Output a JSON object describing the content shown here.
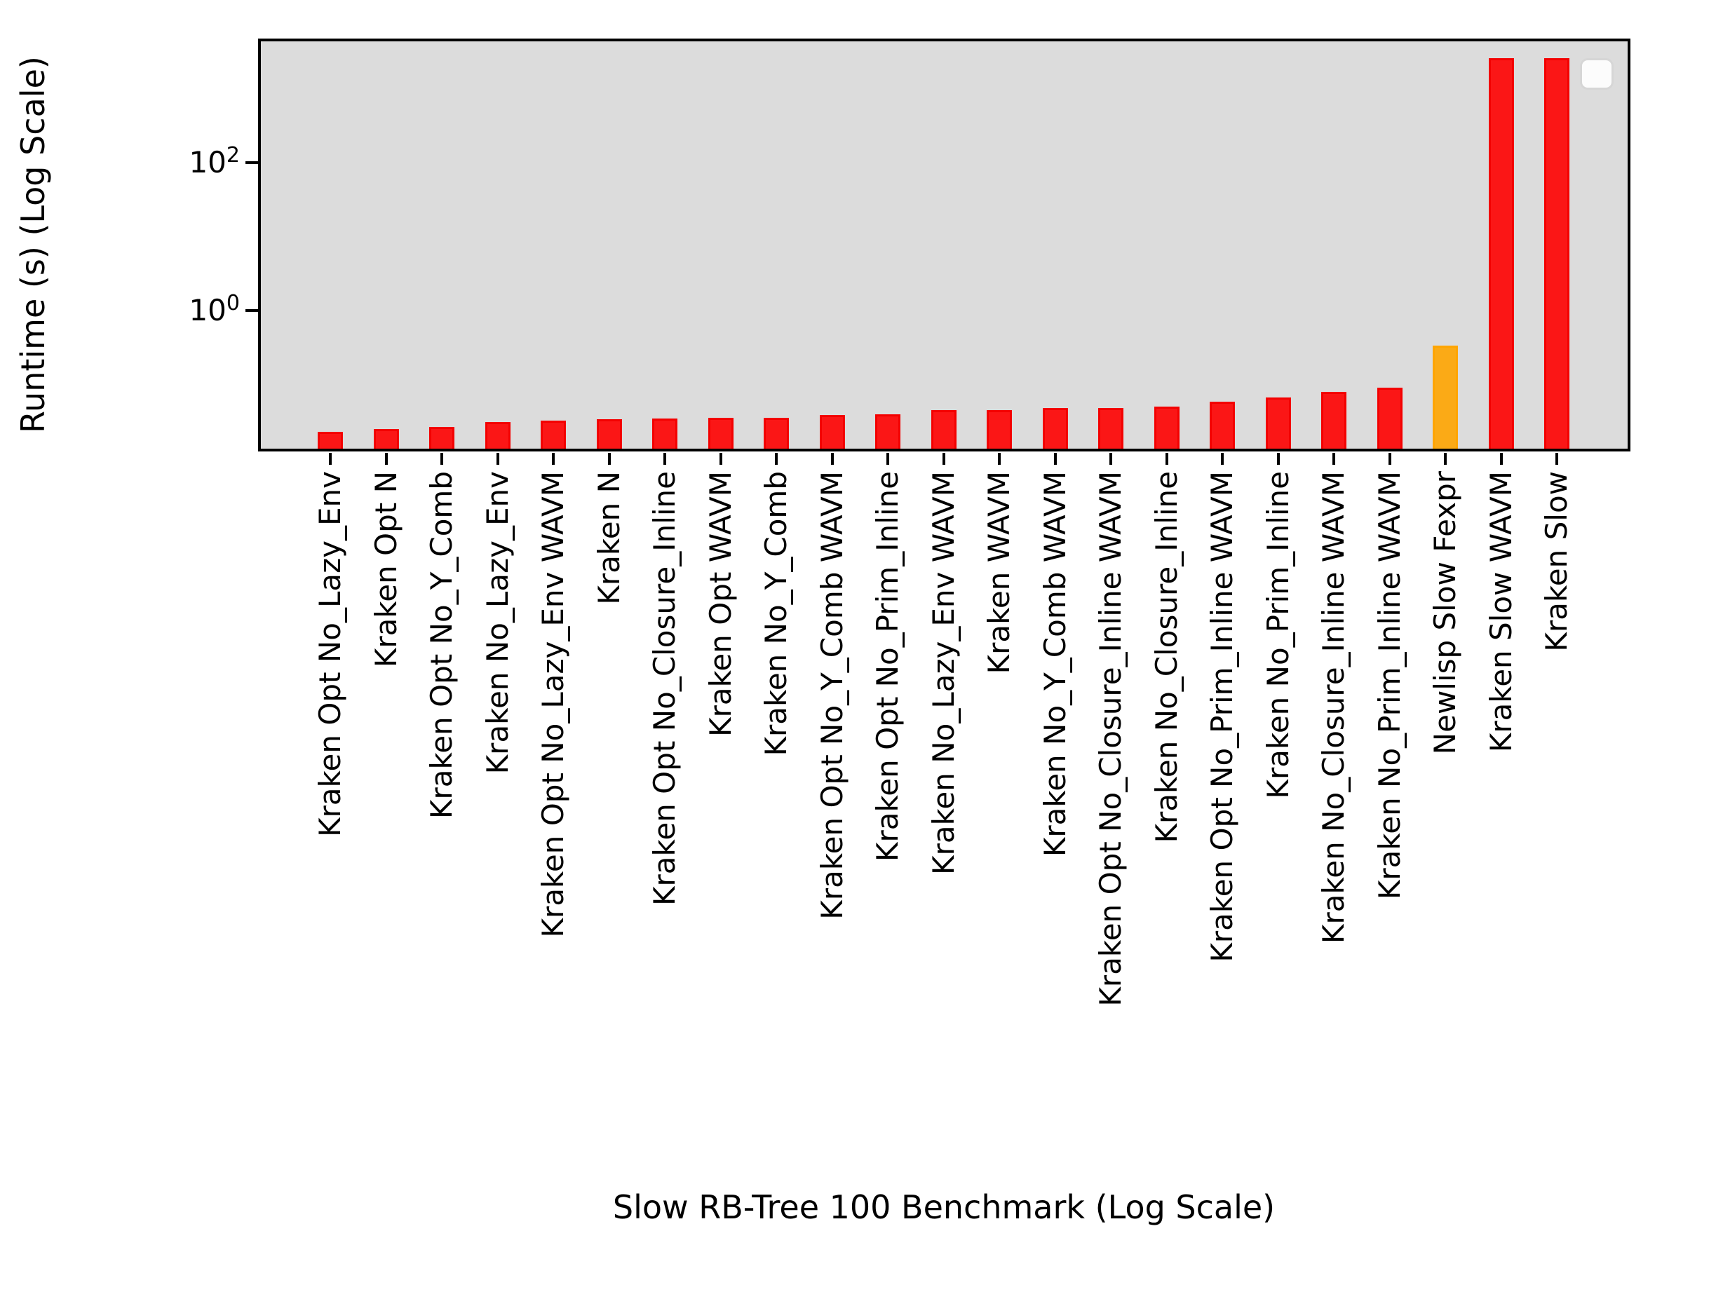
{
  "chart_data": {
    "type": "bar",
    "title": "",
    "xlabel": "Slow RB-Tree 100 Benchmark (Log Scale)",
    "ylabel": "Runtime (s) (Log Scale)",
    "yscale": "log",
    "ylim": [
      0.0125,
      4800
    ],
    "grid": false,
    "yticks": [
      {
        "base": "10",
        "exp": "2",
        "value": 100
      },
      {
        "base": "10",
        "exp": "0",
        "value": 1
      }
    ],
    "categories": [
      "Kraken Opt No_Lazy_Env",
      "Kraken Opt N",
      "Kraken Opt No_Y_Comb",
      "Kraken No_Lazy_Env",
      "Kraken Opt No_Lazy_Env WAVM",
      "Kraken N",
      "Kraken Opt No_Closure_Inline",
      "Kraken Opt WAVM",
      "Kraken No_Y_Comb",
      "Kraken Opt No_Y_Comb WAVM",
      "Kraken Opt No_Prim_Inline",
      "Kraken No_Lazy_Env WAVM",
      "Kraken WAVM",
      "Kraken No_Y_Comb WAVM",
      "Kraken Opt No_Closure_Inline WAVM",
      "Kraken No_Closure_Inline",
      "Kraken Opt No_Prim_Inline WAVM",
      "Kraken No_Prim_Inline",
      "Kraken No_Closure_Inline WAVM",
      "Kraken No_Prim_Inline WAVM",
      "Newlisp Slow Fexpr",
      "Kraken Slow WAVM",
      "Kraken Slow"
    ],
    "values": [
      0.023,
      0.025,
      0.027,
      0.031,
      0.033,
      0.034,
      0.035,
      0.036,
      0.036,
      0.039,
      0.04,
      0.045,
      0.045,
      0.048,
      0.048,
      0.05,
      0.059,
      0.067,
      0.08,
      0.091,
      0.34,
      2600,
      2600
    ],
    "bar_colors": [
      "red",
      "red",
      "red",
      "red",
      "red",
      "red",
      "red",
      "red",
      "red",
      "red",
      "red",
      "red",
      "red",
      "red",
      "red",
      "red",
      "red",
      "red",
      "red",
      "red",
      "orange",
      "red",
      "red"
    ],
    "colors": {
      "red_face": "#FB1616",
      "red_edge": "#F30000",
      "orange_face": "#FBAA16",
      "orange_edge": "#FFA500",
      "plot_background": "#DCDCDC",
      "spine": "#000000"
    },
    "legend": {
      "visible": true,
      "entries": []
    },
    "legend_position": "upper right"
  }
}
